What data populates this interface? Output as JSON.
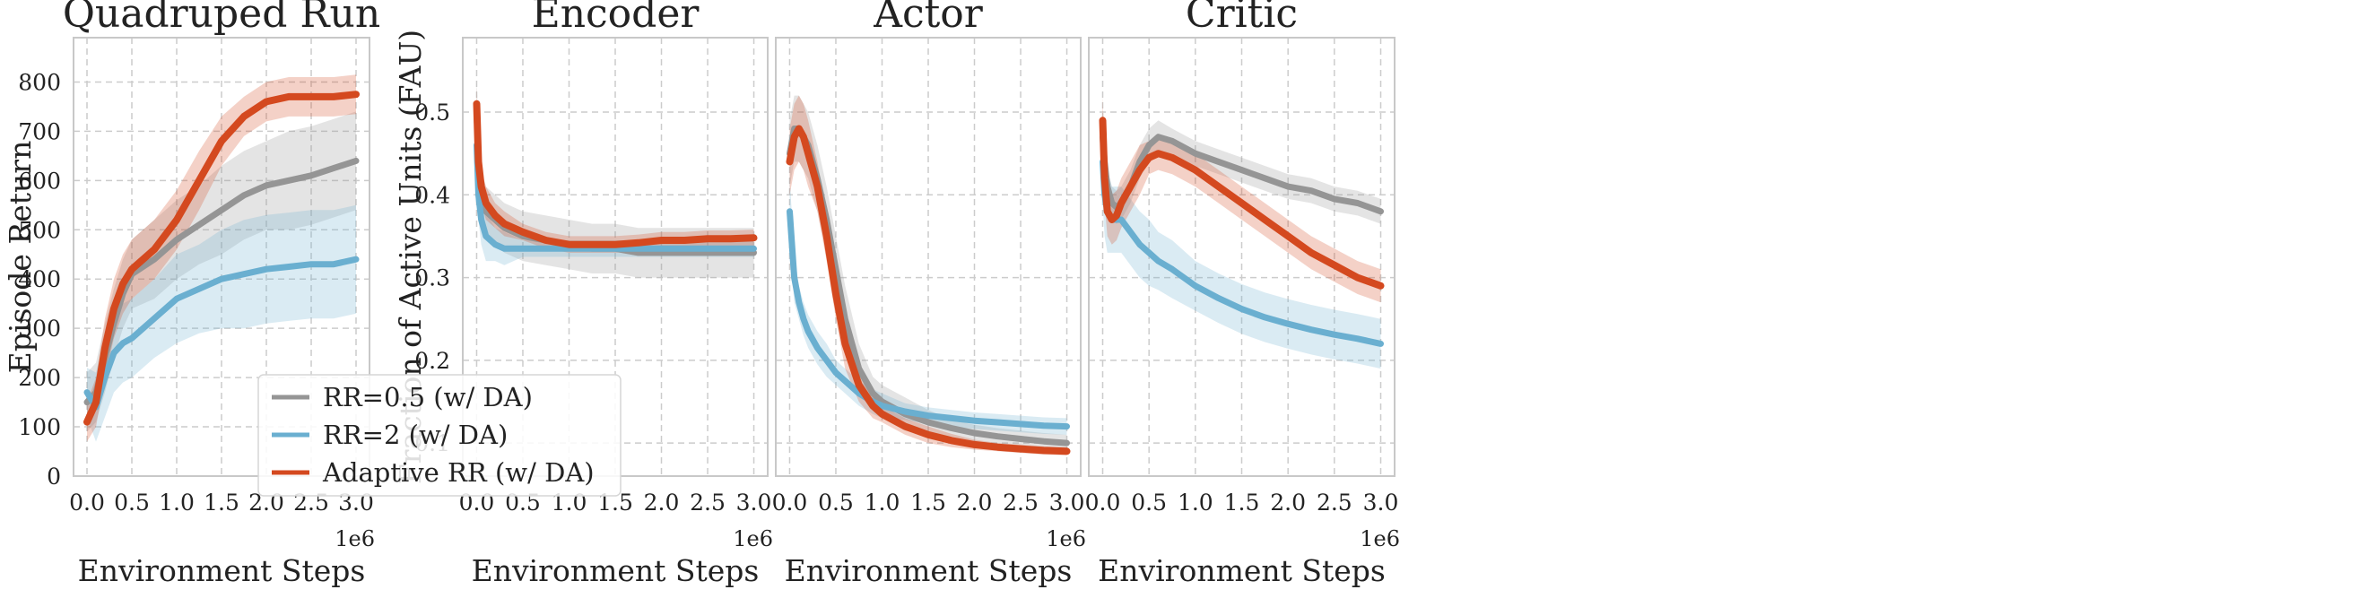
{
  "figure": {
    "x_tick_labels": [
      "0.0",
      "0.5",
      "1.0",
      "1.5",
      "2.0",
      "2.5",
      "3.0"
    ],
    "x_multiplier": "1e6"
  },
  "colors": {
    "rr05": "#959595",
    "rr2": "#6AAFD0",
    "adaptive": "#D4491F",
    "grid": "#cccccc",
    "axes_frame": "#c8c8c8"
  },
  "legend": {
    "location": "lower-right of first panel",
    "entries": [
      {
        "label": "RR=0.5 (w/ DA)",
        "color": "#959595"
      },
      {
        "label": "RR=2 (w/ DA)",
        "color": "#6AAFD0"
      },
      {
        "label": "Adaptive RR (w/ DA)",
        "color": "#D4491F"
      }
    ]
  },
  "chart_data": [
    {
      "type": "line",
      "title": "Quadruped Run",
      "xlabel": "Environment Steps",
      "ylabel": "Episode Return",
      "xlim": [
        -0.15,
        3.15
      ],
      "ylim": [
        0,
        890
      ],
      "x_ticks": [
        0,
        0.5,
        1.0,
        1.5,
        2.0,
        2.5,
        3.0
      ],
      "y_ticks": [
        0,
        100,
        200,
        300,
        400,
        500,
        600,
        700,
        800
      ],
      "y_tick_labels": [
        "0",
        "100",
        "200",
        "300",
        "400",
        "500",
        "600",
        "700",
        "800"
      ],
      "grid": true,
      "x": [
        0,
        0.1,
        0.2,
        0.3,
        0.4,
        0.5,
        0.75,
        1.0,
        1.25,
        1.5,
        1.75,
        2.0,
        2.25,
        2.5,
        2.75,
        3.0
      ],
      "series": [
        {
          "name": "RR=0.5 (w/ DA)",
          "values": [
            150,
            170,
            240,
            310,
            370,
            410,
            440,
            480,
            510,
            540,
            570,
            590,
            600,
            610,
            625,
            640
          ],
          "band": [
            60,
            60,
            70,
            70,
            70,
            70,
            80,
            80,
            80,
            90,
            90,
            90,
            100,
            100,
            100,
            100
          ]
        },
        {
          "name": "RR=2 (w/ DA)",
          "values": [
            170,
            140,
            200,
            250,
            270,
            280,
            320,
            360,
            380,
            400,
            410,
            420,
            425,
            430,
            430,
            440
          ],
          "band": [
            50,
            70,
            80,
            80,
            80,
            80,
            80,
            90,
            90,
            100,
            110,
            110,
            110,
            110,
            110,
            110
          ]
        },
        {
          "name": "Adaptive RR (w/ DA)",
          "values": [
            110,
            150,
            260,
            340,
            390,
            420,
            460,
            520,
            600,
            680,
            730,
            760,
            770,
            770,
            770,
            775
          ],
          "band": [
            40,
            50,
            60,
            60,
            60,
            60,
            60,
            60,
            60,
            50,
            40,
            40,
            40,
            40,
            40,
            40
          ]
        }
      ]
    },
    {
      "type": "line",
      "title": "Encoder",
      "xlabel": "Environment Steps",
      "ylabel": "Fraction of Active Units (FAU)",
      "xlim": [
        -0.15,
        3.15
      ],
      "ylim": [
        0.06,
        0.59
      ],
      "x_ticks": [
        0,
        0.5,
        1.0,
        1.5,
        2.0,
        2.5,
        3.0
      ],
      "y_ticks": [
        0.1,
        0.2,
        0.3,
        0.4,
        0.5
      ],
      "y_tick_labels": [
        "0.1",
        "0.2",
        "0.3",
        "0.4",
        "0.5"
      ],
      "grid": true,
      "x": [
        0,
        0.02,
        0.05,
        0.1,
        0.2,
        0.3,
        0.5,
        0.75,
        1.0,
        1.25,
        1.5,
        1.75,
        2.0,
        2.25,
        2.5,
        2.75,
        3.0
      ],
      "series": [
        {
          "name": "RR=0.5 (w/ DA)",
          "values": [
            0.5,
            0.44,
            0.4,
            0.38,
            0.37,
            0.36,
            0.35,
            0.345,
            0.34,
            0.335,
            0.335,
            0.33,
            0.33,
            0.33,
            0.33,
            0.33,
            0.33
          ],
          "band": [
            0.04,
            0.04,
            0.03,
            0.03,
            0.03,
            0.03,
            0.03,
            0.03,
            0.03,
            0.03,
            0.03,
            0.03,
            0.03,
            0.03,
            0.03,
            0.03,
            0.03
          ]
        },
        {
          "name": "RR=2 (w/ DA)",
          "values": [
            0.46,
            0.4,
            0.37,
            0.35,
            0.34,
            0.335,
            0.335,
            0.335,
            0.335,
            0.335,
            0.335,
            0.335,
            0.335,
            0.335,
            0.335,
            0.335,
            0.335
          ],
          "band": [
            0.03,
            0.03,
            0.03,
            0.03,
            0.02,
            0.02,
            0.01,
            0.01,
            0.01,
            0.01,
            0.01,
            0.01,
            0.01,
            0.01,
            0.01,
            0.01,
            0.01
          ]
        },
        {
          "name": "Adaptive RR (w/ DA)",
          "values": [
            0.51,
            0.44,
            0.41,
            0.39,
            0.375,
            0.365,
            0.355,
            0.345,
            0.34,
            0.34,
            0.34,
            0.342,
            0.345,
            0.345,
            0.347,
            0.347,
            0.348
          ],
          "band": [
            0.02,
            0.02,
            0.02,
            0.02,
            0.015,
            0.015,
            0.01,
            0.01,
            0.01,
            0.01,
            0.01,
            0.01,
            0.01,
            0.01,
            0.01,
            0.01,
            0.01
          ]
        }
      ]
    },
    {
      "type": "line",
      "title": "Actor",
      "xlabel": "Environment Steps",
      "ylabel": "",
      "xlim": [
        -0.15,
        3.15
      ],
      "ylim": [
        0.06,
        0.59
      ],
      "x_ticks": [
        0,
        0.5,
        1.0,
        1.5,
        2.0,
        2.5,
        3.0
      ],
      "y_ticks": [
        0.1,
        0.2,
        0.3,
        0.4,
        0.5
      ],
      "grid": true,
      "x": [
        0,
        0.05,
        0.1,
        0.15,
        0.2,
        0.3,
        0.4,
        0.5,
        0.6,
        0.75,
        0.9,
        1.0,
        1.25,
        1.5,
        1.75,
        2.0,
        2.25,
        2.5,
        2.75,
        3.0
      ],
      "series": [
        {
          "name": "RR=0.5 (w/ DA)",
          "values": [
            0.45,
            0.48,
            0.48,
            0.47,
            0.46,
            0.42,
            0.37,
            0.31,
            0.25,
            0.19,
            0.16,
            0.15,
            0.135,
            0.125,
            0.118,
            0.112,
            0.108,
            0.105,
            0.102,
            0.1
          ],
          "band": [
            0.04,
            0.04,
            0.04,
            0.04,
            0.04,
            0.04,
            0.04,
            0.04,
            0.04,
            0.03,
            0.02,
            0.02,
            0.02,
            0.015,
            0.01,
            0.01,
            0.01,
            0.01,
            0.01,
            0.01
          ]
        },
        {
          "name": "RR=2 (w/ DA)",
          "values": [
            0.38,
            0.3,
            0.27,
            0.25,
            0.235,
            0.215,
            0.2,
            0.185,
            0.175,
            0.16,
            0.15,
            0.145,
            0.138,
            0.133,
            0.13,
            0.127,
            0.125,
            0.123,
            0.121,
            0.12
          ],
          "band": [
            0.04,
            0.03,
            0.02,
            0.02,
            0.02,
            0.02,
            0.02,
            0.015,
            0.015,
            0.015,
            0.015,
            0.015,
            0.01,
            0.01,
            0.01,
            0.01,
            0.01,
            0.01,
            0.01,
            0.01
          ]
        },
        {
          "name": "Adaptive RR (w/ DA)",
          "values": [
            0.44,
            0.47,
            0.48,
            0.47,
            0.45,
            0.41,
            0.35,
            0.28,
            0.22,
            0.17,
            0.145,
            0.135,
            0.12,
            0.11,
            0.103,
            0.098,
            0.095,
            0.093,
            0.091,
            0.09
          ],
          "band": [
            0.04,
            0.04,
            0.04,
            0.04,
            0.04,
            0.03,
            0.03,
            0.03,
            0.03,
            0.02,
            0.015,
            0.01,
            0.01,
            0.01,
            0.008,
            0.006,
            0.005,
            0.005,
            0.005,
            0.005
          ]
        }
      ]
    },
    {
      "type": "line",
      "title": "Critic",
      "xlabel": "Environment Steps",
      "ylabel": "",
      "xlim": [
        -0.15,
        3.15
      ],
      "ylim": [
        0.06,
        0.59
      ],
      "x_ticks": [
        0,
        0.5,
        1.0,
        1.5,
        2.0,
        2.5,
        3.0
      ],
      "y_ticks": [
        0.1,
        0.2,
        0.3,
        0.4,
        0.5
      ],
      "grid": true,
      "x": [
        0,
        0.02,
        0.05,
        0.1,
        0.15,
        0.2,
        0.3,
        0.4,
        0.5,
        0.6,
        0.75,
        1.0,
        1.25,
        1.5,
        1.75,
        2.0,
        2.25,
        2.5,
        2.75,
        3.0
      ],
      "series": [
        {
          "name": "RR=0.5 (w/ DA)",
          "values": [
            0.47,
            0.44,
            0.41,
            0.39,
            0.385,
            0.39,
            0.41,
            0.44,
            0.46,
            0.47,
            0.465,
            0.45,
            0.44,
            0.43,
            0.42,
            0.41,
            0.405,
            0.395,
            0.39,
            0.38
          ],
          "band": [
            0.02,
            0.02,
            0.02,
            0.02,
            0.02,
            0.02,
            0.02,
            0.02,
            0.02,
            0.02,
            0.015,
            0.015,
            0.015,
            0.015,
            0.015,
            0.015,
            0.015,
            0.015,
            0.015,
            0.015
          ]
        },
        {
          "name": "RR=2 (w/ DA)",
          "values": [
            0.44,
            0.4,
            0.38,
            0.37,
            0.37,
            0.37,
            0.355,
            0.34,
            0.33,
            0.32,
            0.31,
            0.29,
            0.275,
            0.262,
            0.252,
            0.244,
            0.237,
            0.231,
            0.226,
            0.22
          ],
          "band": [
            0.05,
            0.05,
            0.05,
            0.04,
            0.04,
            0.04,
            0.04,
            0.04,
            0.04,
            0.035,
            0.035,
            0.03,
            0.03,
            0.03,
            0.03,
            0.03,
            0.03,
            0.03,
            0.03,
            0.03
          ]
        },
        {
          "name": "Adaptive RR (w/ DA)",
          "values": [
            0.49,
            0.42,
            0.38,
            0.37,
            0.375,
            0.39,
            0.41,
            0.43,
            0.445,
            0.45,
            0.445,
            0.43,
            0.41,
            0.39,
            0.37,
            0.35,
            0.33,
            0.315,
            0.3,
            0.29
          ],
          "band": [
            0.03,
            0.03,
            0.03,
            0.03,
            0.03,
            0.03,
            0.03,
            0.03,
            0.02,
            0.02,
            0.02,
            0.02,
            0.02,
            0.02,
            0.02,
            0.02,
            0.02,
            0.02,
            0.02,
            0.02
          ]
        }
      ]
    }
  ]
}
